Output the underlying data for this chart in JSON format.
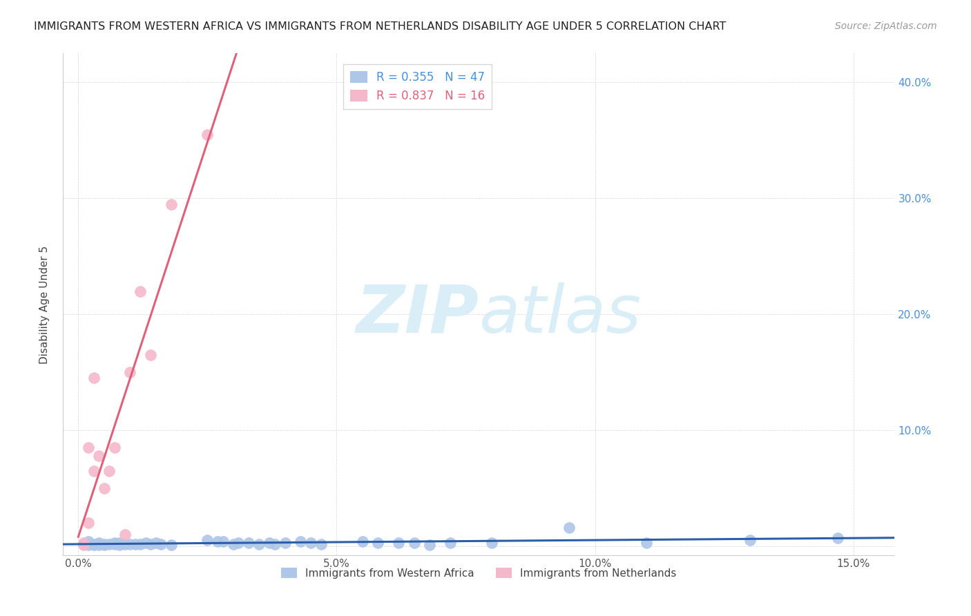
{
  "title": "IMMIGRANTS FROM WESTERN AFRICA VS IMMIGRANTS FROM NETHERLANDS DISABILITY AGE UNDER 5 CORRELATION CHART",
  "source": "Source: ZipAtlas.com",
  "ylabel": "Disability Age Under 5",
  "x_ticks": [
    0.0,
    0.05,
    0.1,
    0.15
  ],
  "x_tick_labels": [
    "0.0%",
    "5.0%",
    "10.0%",
    "15.0%"
  ],
  "y_ticks": [
    0.0,
    0.1,
    0.2,
    0.3,
    0.4
  ],
  "y_tick_labels_right": [
    "",
    "10.0%",
    "20.0%",
    "30.0%",
    "40.0%"
  ],
  "xlim": [
    -0.003,
    0.158
  ],
  "ylim": [
    -0.008,
    0.425
  ],
  "legend1_label": "R = 0.355   N = 47",
  "legend2_label": "R = 0.837   N = 16",
  "legend_bottom1": "Immigrants from Western Africa",
  "legend_bottom2": "Immigrants from Netherlands",
  "blue_color": "#aec6e8",
  "blue_line_color": "#2a5fa8",
  "pink_color": "#f4b8cb",
  "pink_line_color": "#e0607a",
  "watermark_zip": "ZIP",
  "watermark_atlas": "atlas",
  "watermark_color": "#daeef8",
  "blue_dots": [
    [
      0.001,
      0.002
    ],
    [
      0.002,
      0.001
    ],
    [
      0.002,
      0.004
    ],
    [
      0.003,
      0.001
    ],
    [
      0.003,
      0.002
    ],
    [
      0.004,
      0.003
    ],
    [
      0.004,
      0.001
    ],
    [
      0.005,
      0.001
    ],
    [
      0.005,
      0.002
    ],
    [
      0.006,
      0.002
    ],
    [
      0.007,
      0.002
    ],
    [
      0.007,
      0.003
    ],
    [
      0.008,
      0.001
    ],
    [
      0.008,
      0.003
    ],
    [
      0.009,
      0.002
    ],
    [
      0.01,
      0.002
    ],
    [
      0.011,
      0.002
    ],
    [
      0.012,
      0.002
    ],
    [
      0.013,
      0.003
    ],
    [
      0.014,
      0.002
    ],
    [
      0.015,
      0.003
    ],
    [
      0.016,
      0.002
    ],
    [
      0.018,
      0.001
    ],
    [
      0.025,
      0.005
    ],
    [
      0.027,
      0.004
    ],
    [
      0.028,
      0.004
    ],
    [
      0.03,
      0.002
    ],
    [
      0.031,
      0.003
    ],
    [
      0.033,
      0.003
    ],
    [
      0.035,
      0.002
    ],
    [
      0.037,
      0.003
    ],
    [
      0.038,
      0.002
    ],
    [
      0.04,
      0.003
    ],
    [
      0.043,
      0.004
    ],
    [
      0.045,
      0.003
    ],
    [
      0.047,
      0.002
    ],
    [
      0.055,
      0.004
    ],
    [
      0.058,
      0.003
    ],
    [
      0.062,
      0.003
    ],
    [
      0.065,
      0.003
    ],
    [
      0.068,
      0.001
    ],
    [
      0.072,
      0.003
    ],
    [
      0.08,
      0.003
    ],
    [
      0.095,
      0.016
    ],
    [
      0.11,
      0.003
    ],
    [
      0.13,
      0.005
    ],
    [
      0.147,
      0.007
    ]
  ],
  "pink_dots": [
    [
      0.001,
      0.003
    ],
    [
      0.001,
      0.001
    ],
    [
      0.002,
      0.085
    ],
    [
      0.002,
      0.02
    ],
    [
      0.003,
      0.145
    ],
    [
      0.003,
      0.065
    ],
    [
      0.004,
      0.078
    ],
    [
      0.005,
      0.05
    ],
    [
      0.006,
      0.065
    ],
    [
      0.007,
      0.085
    ],
    [
      0.009,
      0.01
    ],
    [
      0.01,
      0.15
    ],
    [
      0.012,
      0.22
    ],
    [
      0.014,
      0.165
    ],
    [
      0.018,
      0.295
    ],
    [
      0.025,
      0.355
    ]
  ],
  "background_color": "#ffffff",
  "grid_color": "#dddddd"
}
